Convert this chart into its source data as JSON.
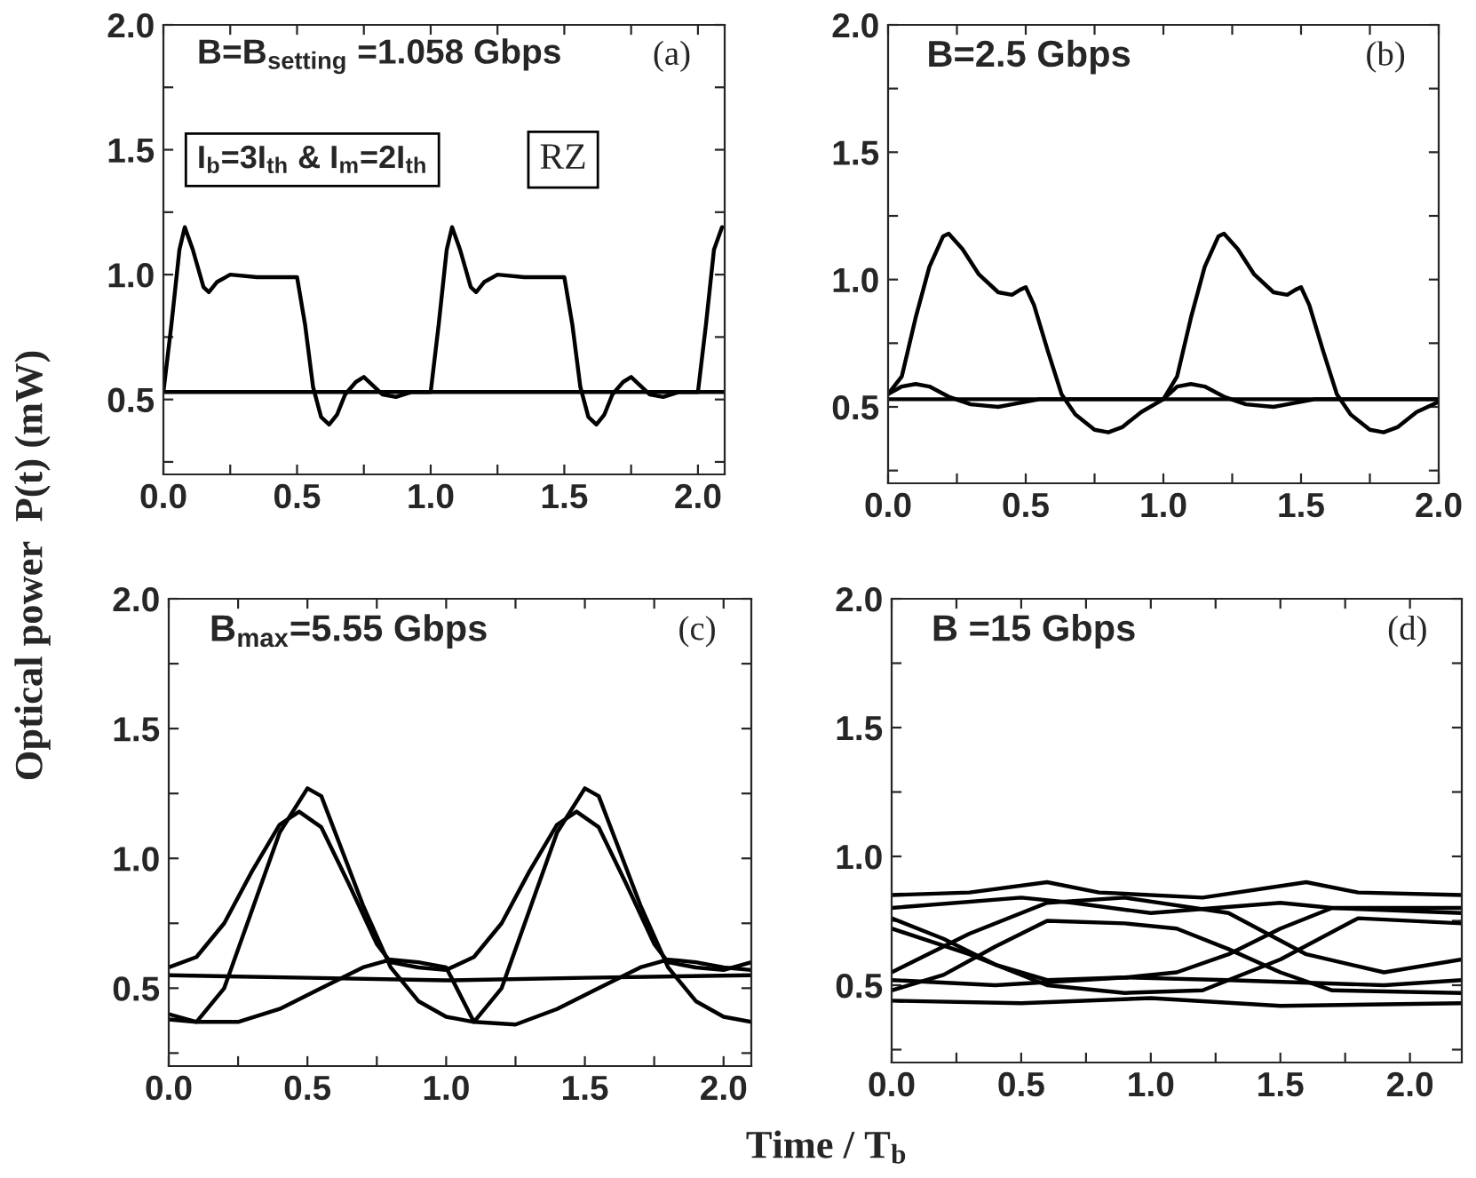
{
  "chart_data": [
    {
      "type": "line",
      "ylabel": "Optical power  P(t) (mW)",
      "xlim": [
        0,
        2.1
      ],
      "ylim": [
        0.2,
        2.0
      ],
      "xticks": [
        {
          "value": 0.0,
          "label": "0.0"
        },
        {
          "value": 0.25,
          "label": null
        },
        {
          "value": 0.5,
          "label": "0.5"
        },
        {
          "value": 0.75,
          "label": null
        },
        {
          "value": 1.0,
          "label": "1.0"
        },
        {
          "value": 1.25,
          "label": null
        },
        {
          "value": 1.5,
          "label": "1.5"
        },
        {
          "value": 1.75,
          "label": null
        },
        {
          "value": 2.0,
          "label": "2.0"
        }
      ],
      "yticks": [
        {
          "value": 0.25,
          "label": null
        },
        {
          "value": 0.5,
          "label": "0.5"
        },
        {
          "value": 0.75,
          "label": null
        },
        {
          "value": 1.0,
          "label": "1.0"
        },
        {
          "value": 1.25,
          "label": null
        },
        {
          "value": 1.5,
          "label": "1.5"
        },
        {
          "value": 1.75,
          "label": null
        },
        {
          "value": 2.0,
          "label": "2.0"
        }
      ],
      "annotations": [
        "B=B$_{setting}$ =1.058 Gbps",
        "(a)",
        "I$_{b}$=3I$_{th}$ & I$_{m}$=2I$_{th}$",
        "RZ"
      ],
      "series": [
        {
          "color": "#000000",
          "x": [
            0.0,
            0.03,
            0.06,
            0.08,
            0.11,
            0.15,
            0.17,
            0.2,
            0.25,
            0.35,
            0.45,
            0.5,
            0.53,
            0.56,
            0.59,
            0.62,
            0.65,
            0.68,
            0.72,
            0.75,
            0.78,
            0.82,
            0.87,
            0.93,
            1.0,
            1.03,
            1.06,
            1.08,
            1.11,
            1.15,
            1.17,
            1.2,
            1.25,
            1.35,
            1.45,
            1.5,
            1.53,
            1.56,
            1.59,
            1.62,
            1.65,
            1.68,
            1.72,
            1.75,
            1.78,
            1.82,
            1.87,
            1.93,
            2.0,
            2.03,
            2.06,
            2.09
          ],
          "values": [
            0.53,
            0.8,
            1.1,
            1.19,
            1.1,
            0.95,
            0.93,
            0.97,
            1.0,
            0.99,
            0.99,
            0.99,
            0.8,
            0.55,
            0.43,
            0.4,
            0.44,
            0.52,
            0.57,
            0.59,
            0.56,
            0.52,
            0.51,
            0.53,
            0.53,
            0.8,
            1.1,
            1.19,
            1.1,
            0.95,
            0.93,
            0.97,
            1.0,
            0.99,
            0.99,
            0.99,
            0.8,
            0.55,
            0.43,
            0.4,
            0.44,
            0.52,
            0.57,
            0.59,
            0.56,
            0.52,
            0.51,
            0.53,
            0.53,
            0.8,
            1.1,
            1.19
          ]
        },
        {
          "color": "#000000",
          "x": [
            0.0,
            0.5,
            1.0,
            1.5,
            2.1
          ],
          "values": [
            0.53,
            0.53,
            0.53,
            0.53,
            0.53
          ]
        }
      ]
    },
    {
      "type": "line",
      "xlim": [
        0,
        2.0
      ],
      "ylim": [
        0.2,
        2.0
      ],
      "xticks": [
        {
          "value": 0.0,
          "label": "0.0"
        },
        {
          "value": 0.25,
          "label": null
        },
        {
          "value": 0.5,
          "label": "0.5"
        },
        {
          "value": 0.75,
          "label": null
        },
        {
          "value": 1.0,
          "label": "1.0"
        },
        {
          "value": 1.25,
          "label": null
        },
        {
          "value": 1.5,
          "label": "1.5"
        },
        {
          "value": 1.75,
          "label": null
        },
        {
          "value": 2.0,
          "label": "2.0"
        }
      ],
      "yticks": [
        {
          "value": 0.25,
          "label": null
        },
        {
          "value": 0.5,
          "label": "0.5"
        },
        {
          "value": 0.75,
          "label": null
        },
        {
          "value": 1.0,
          "label": "1.0"
        },
        {
          "value": 1.25,
          "label": null
        },
        {
          "value": 1.5,
          "label": "1.5"
        },
        {
          "value": 1.75,
          "label": null
        },
        {
          "value": 2.0,
          "label": "2.0"
        }
      ],
      "annotations": [
        "B=2.5 Gbps",
        "(b)"
      ],
      "series": [
        {
          "color": "#000000",
          "x": [
            0.0,
            0.05,
            0.1,
            0.15,
            0.2,
            0.22,
            0.27,
            0.33,
            0.4,
            0.45,
            0.48,
            0.5,
            0.53,
            0.58,
            0.63,
            0.68,
            0.75,
            0.8,
            0.85,
            0.92,
            1.0,
            1.05,
            1.1,
            1.15,
            1.2,
            1.22,
            1.27,
            1.33,
            1.4,
            1.45,
            1.48,
            1.5,
            1.53,
            1.58,
            1.63,
            1.68,
            1.75,
            1.8,
            1.85,
            1.92,
            2.0
          ],
          "values": [
            0.55,
            0.62,
            0.85,
            1.05,
            1.17,
            1.18,
            1.12,
            1.02,
            0.95,
            0.94,
            0.96,
            0.97,
            0.9,
            0.72,
            0.55,
            0.47,
            0.41,
            0.4,
            0.42,
            0.48,
            0.53,
            0.62,
            0.85,
            1.05,
            1.17,
            1.18,
            1.12,
            1.02,
            0.95,
            0.94,
            0.96,
            0.97,
            0.9,
            0.72,
            0.55,
            0.47,
            0.41,
            0.4,
            0.42,
            0.48,
            0.52
          ]
        },
        {
          "color": "#000000",
          "x": [
            0.0,
            0.05,
            0.1,
            0.15,
            0.22,
            0.3,
            0.4,
            0.45,
            0.55,
            0.65,
            1.0,
            1.05,
            1.1,
            1.15,
            1.22,
            1.3,
            1.4,
            1.45,
            1.55,
            1.65,
            2.0
          ],
          "values": [
            0.55,
            0.58,
            0.59,
            0.58,
            0.54,
            0.51,
            0.5,
            0.51,
            0.53,
            0.53,
            0.53,
            0.58,
            0.59,
            0.58,
            0.54,
            0.51,
            0.5,
            0.51,
            0.53,
            0.53,
            0.53
          ]
        },
        {
          "color": "#000000",
          "x": [
            0.0,
            0.5,
            1.0,
            1.5,
            2.0
          ],
          "values": [
            0.53,
            0.53,
            0.53,
            0.53,
            0.53
          ]
        }
      ]
    },
    {
      "type": "line",
      "xlim": [
        0,
        2.1
      ],
      "ylim": [
        0.2,
        2.0
      ],
      "xticks": [
        {
          "value": 0.0,
          "label": "0.0"
        },
        {
          "value": 0.25,
          "label": null
        },
        {
          "value": 0.5,
          "label": "0.5"
        },
        {
          "value": 0.75,
          "label": null
        },
        {
          "value": 1.0,
          "label": "1.0"
        },
        {
          "value": 1.25,
          "label": null
        },
        {
          "value": 1.5,
          "label": "1.5"
        },
        {
          "value": 1.75,
          "label": null
        },
        {
          "value": 2.0,
          "label": "2.0"
        }
      ],
      "yticks": [
        {
          "value": 0.25,
          "label": null
        },
        {
          "value": 0.5,
          "label": "0.5"
        },
        {
          "value": 0.75,
          "label": null
        },
        {
          "value": 1.0,
          "label": "1.0"
        },
        {
          "value": 1.25,
          "label": null
        },
        {
          "value": 1.5,
          "label": "1.5"
        },
        {
          "value": 1.75,
          "label": null
        },
        {
          "value": 2.0,
          "label": "2.0"
        }
      ],
      "annotations": [
        "B$_{max}$=5.55 Gbps",
        "(c)"
      ],
      "series": [
        {
          "color": "#000000",
          "x": [
            0.0,
            0.1,
            0.2,
            0.3,
            0.4,
            0.5,
            0.55,
            0.6,
            0.7,
            0.8,
            0.9,
            1.0,
            1.1,
            1.2,
            1.3,
            1.4,
            1.5,
            1.55,
            1.6,
            1.7,
            1.8,
            1.9,
            2.0,
            2.1
          ],
          "values": [
            0.38,
            0.37,
            0.5,
            0.8,
            1.1,
            1.27,
            1.24,
            1.1,
            0.82,
            0.58,
            0.45,
            0.39,
            0.37,
            0.5,
            0.8,
            1.1,
            1.27,
            1.24,
            1.1,
            0.82,
            0.58,
            0.45,
            0.39,
            0.37
          ]
        },
        {
          "color": "#000000",
          "x": [
            0.0,
            0.1,
            0.2,
            0.3,
            0.4,
            0.47,
            0.55,
            0.65,
            0.75,
            0.8,
            0.9,
            1.0,
            1.1,
            1.2,
            1.3,
            1.4,
            1.47,
            1.55,
            1.65,
            1.75,
            1.8,
            1.9,
            2.0,
            2.1
          ],
          "values": [
            0.58,
            0.62,
            0.75,
            0.95,
            1.13,
            1.18,
            1.12,
            0.9,
            0.67,
            0.6,
            0.58,
            0.57,
            0.62,
            0.75,
            0.95,
            1.13,
            1.18,
            1.12,
            0.9,
            0.67,
            0.6,
            0.58,
            0.57,
            0.6
          ]
        },
        {
          "color": "#000000",
          "x": [
            0.0,
            0.1,
            0.25,
            0.4,
            0.55,
            0.7,
            0.8,
            0.9,
            1.0,
            1.1,
            1.25,
            1.4,
            1.55,
            1.7,
            1.8,
            1.9,
            2.0,
            2.1
          ],
          "values": [
            0.4,
            0.37,
            0.37,
            0.42,
            0.5,
            0.58,
            0.61,
            0.6,
            0.58,
            0.37,
            0.36,
            0.42,
            0.5,
            0.58,
            0.61,
            0.6,
            0.58,
            0.57
          ]
        },
        {
          "color": "#000000",
          "x": [
            0.0,
            0.5,
            1.0,
            1.5,
            2.1
          ],
          "values": [
            0.55,
            0.54,
            0.53,
            0.54,
            0.55
          ]
        }
      ]
    },
    {
      "type": "line",
      "xlabel": "Time / T$_{b}$",
      "xlim": [
        0,
        2.2
      ],
      "ylim": [
        0.2,
        2.0
      ],
      "xticks": [
        {
          "value": 0.0,
          "label": "0.0"
        },
        {
          "value": 0.25,
          "label": null
        },
        {
          "value": 0.5,
          "label": "0.5"
        },
        {
          "value": 0.75,
          "label": null
        },
        {
          "value": 1.0,
          "label": "1.0"
        },
        {
          "value": 1.25,
          "label": null
        },
        {
          "value": 1.5,
          "label": "1.5"
        },
        {
          "value": 1.75,
          "label": null
        },
        {
          "value": 2.0,
          "label": "2.0"
        }
      ],
      "yticks": [
        {
          "value": 0.25,
          "label": null
        },
        {
          "value": 0.5,
          "label": "0.5"
        },
        {
          "value": 0.75,
          "label": null
        },
        {
          "value": 1.0,
          "label": "1.0"
        },
        {
          "value": 1.25,
          "label": null
        },
        {
          "value": 1.5,
          "label": "1.5"
        },
        {
          "value": 1.75,
          "label": null
        },
        {
          "value": 2.0,
          "label": "2.0"
        }
      ],
      "annotations": [
        "B =15 Gbps",
        "(d)"
      ],
      "series": [
        {
          "color": "#000000",
          "x": [
            0.0,
            0.3,
            0.6,
            0.8,
            1.2,
            1.6,
            1.8,
            2.2
          ],
          "values": [
            0.85,
            0.86,
            0.9,
            0.86,
            0.84,
            0.9,
            0.86,
            0.85
          ]
        },
        {
          "color": "#000000",
          "x": [
            0.0,
            0.5,
            0.7,
            1.0,
            1.5,
            1.7,
            2.2
          ],
          "values": [
            0.8,
            0.84,
            0.82,
            0.78,
            0.82,
            0.8,
            0.78
          ]
        },
        {
          "color": "#000000",
          "x": [
            0.0,
            0.5,
            1.0,
            1.5,
            2.2
          ],
          "values": [
            0.44,
            0.43,
            0.45,
            0.42,
            0.43
          ]
        },
        {
          "color": "#000000",
          "x": [
            0.0,
            0.4,
            0.9,
            1.3,
            1.9,
            2.2
          ],
          "values": [
            0.52,
            0.5,
            0.53,
            0.52,
            0.5,
            0.52
          ]
        },
        {
          "color": "#000000",
          "x": [
            0.0,
            0.2,
            0.4,
            0.6,
            0.9,
            1.1,
            1.3,
            1.5,
            1.7,
            2.2
          ],
          "values": [
            0.76,
            0.68,
            0.58,
            0.52,
            0.53,
            0.55,
            0.62,
            0.72,
            0.8,
            0.8
          ]
        },
        {
          "color": "#000000",
          "x": [
            0.0,
            0.2,
            0.4,
            0.6,
            0.9,
            1.1,
            1.3,
            1.5,
            1.7,
            2.2
          ],
          "values": [
            0.48,
            0.54,
            0.65,
            0.75,
            0.74,
            0.72,
            0.64,
            0.55,
            0.48,
            0.47
          ]
        },
        {
          "color": "#000000",
          "x": [
            0.0,
            0.3,
            0.6,
            0.9,
            1.2,
            1.5,
            1.8,
            2.2
          ],
          "values": [
            0.72,
            0.62,
            0.5,
            0.47,
            0.48,
            0.6,
            0.76,
            0.74
          ]
        },
        {
          "color": "#000000",
          "x": [
            0.0,
            0.3,
            0.6,
            0.9,
            1.3,
            1.6,
            1.9,
            2.2
          ],
          "values": [
            0.55,
            0.7,
            0.82,
            0.84,
            0.78,
            0.62,
            0.55,
            0.6
          ]
        }
      ]
    }
  ]
}
